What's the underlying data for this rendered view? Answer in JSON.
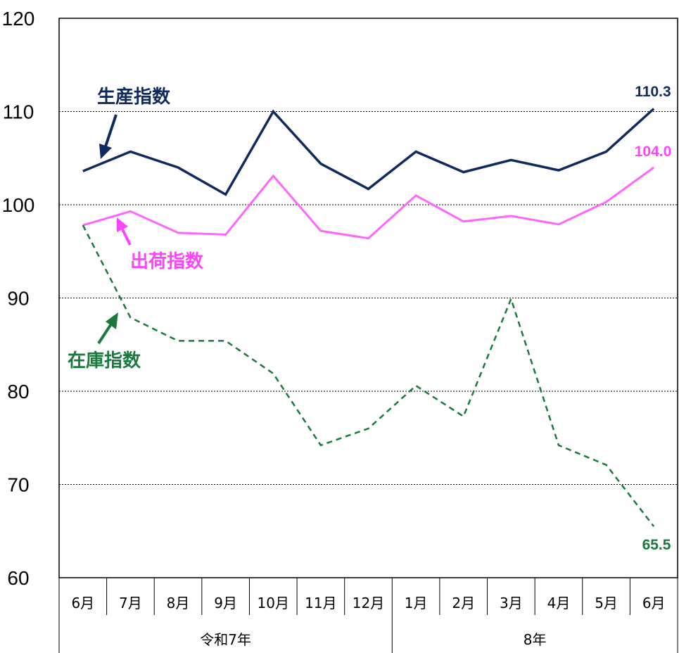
{
  "chart_data": {
    "type": "line",
    "categories": [
      "6月",
      "7月",
      "8月",
      "9月",
      "10月",
      "11月",
      "12月",
      "1月",
      "2月",
      "3月",
      "4月",
      "5月",
      "6月"
    ],
    "year_groups": [
      {
        "label": "令和7年",
        "start": 0,
        "end": 6
      },
      {
        "label": "8年",
        "start": 7,
        "end": 12
      }
    ],
    "ylim": [
      60,
      120
    ],
    "yticks": [
      "60",
      "70",
      "80",
      "90",
      "100",
      "110",
      "120"
    ],
    "gridlines": [
      70,
      80,
      90,
      100,
      110
    ],
    "series": [
      {
        "name": "生産指数",
        "color": "#0f2a5e",
        "style": "solid",
        "values": [
          103.6,
          105.7,
          104.0,
          101.1,
          110.0,
          104.4,
          101.7,
          105.7,
          103.5,
          104.8,
          103.7,
          105.7,
          110.3
        ],
        "end_label": "110.3"
      },
      {
        "name": "出荷指数",
        "color": "#ff66ff",
        "style": "solid",
        "values": [
          97.8,
          99.3,
          97.0,
          96.8,
          103.1,
          97.2,
          96.4,
          101.0,
          98.2,
          98.8,
          97.9,
          100.3,
          104.0
        ],
        "end_label": "104.0"
      },
      {
        "name": "在庫指数",
        "color": "#1a7a3e",
        "style": "dashed",
        "values": [
          97.8,
          87.9,
          85.4,
          85.4,
          81.9,
          74.2,
          76.0,
          80.6,
          77.3,
          89.9,
          74.2,
          72.1,
          65.5
        ],
        "end_label": "65.5"
      }
    ]
  }
}
